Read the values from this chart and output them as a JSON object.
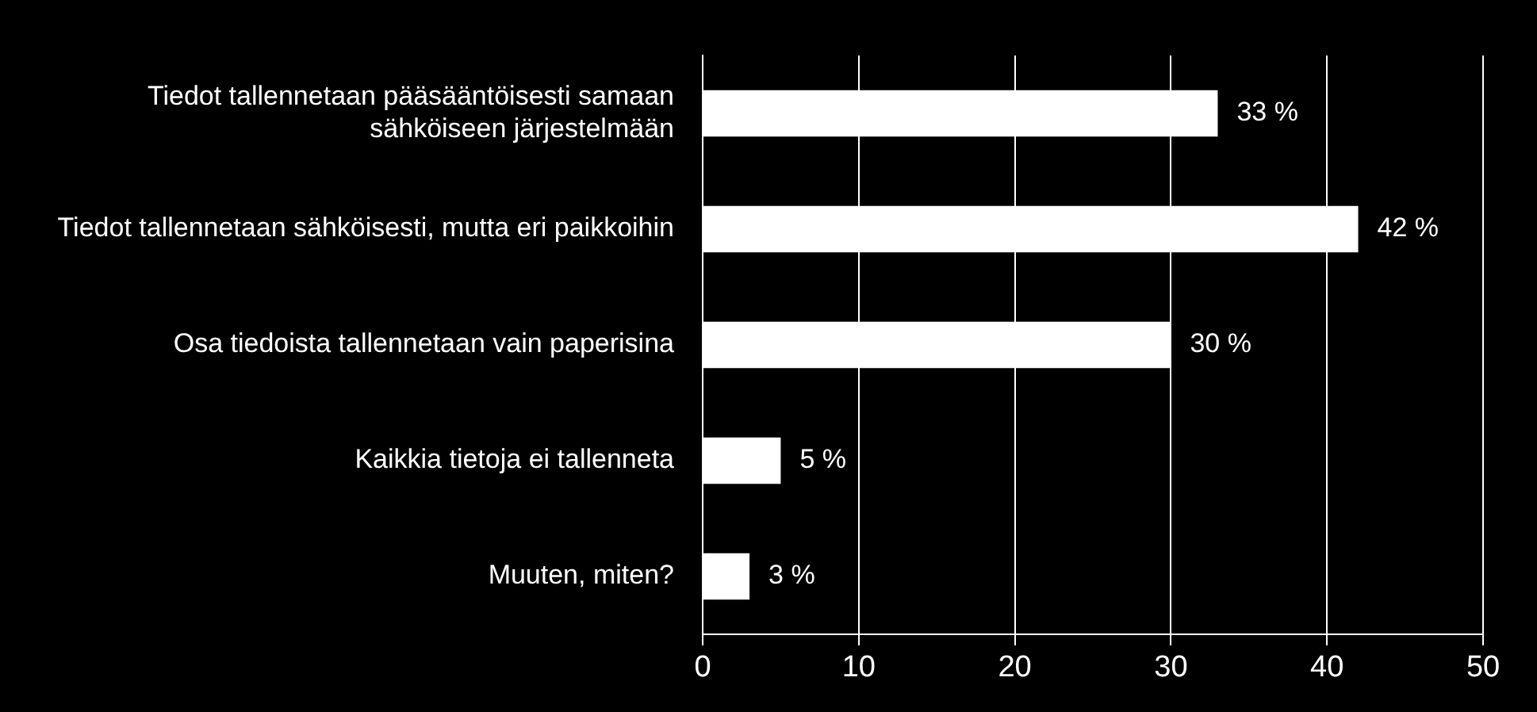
{
  "chart_data": {
    "type": "bar",
    "orientation": "horizontal",
    "categories": [
      "Tiedot tallennetaan pääsääntöisesti samaan sähköiseen järjestelmään",
      "Tiedot tallennetaan sähköisesti, mutta eri paikkoihin",
      "Osa tiedoista tallennetaan vain paperisina",
      "Kaikkia tietoja ei tallenneta",
      "Muuten, miten?"
    ],
    "values": [
      33,
      42,
      30,
      5,
      3
    ],
    "value_labels": [
      "33 %",
      "42 %",
      "30 %",
      "5 %",
      "3 %"
    ],
    "color": "#ffffff",
    "xlim": [
      0,
      50
    ],
    "xticks": [
      0,
      10,
      20,
      30,
      40,
      50
    ],
    "grid": "x",
    "legend": false
  }
}
